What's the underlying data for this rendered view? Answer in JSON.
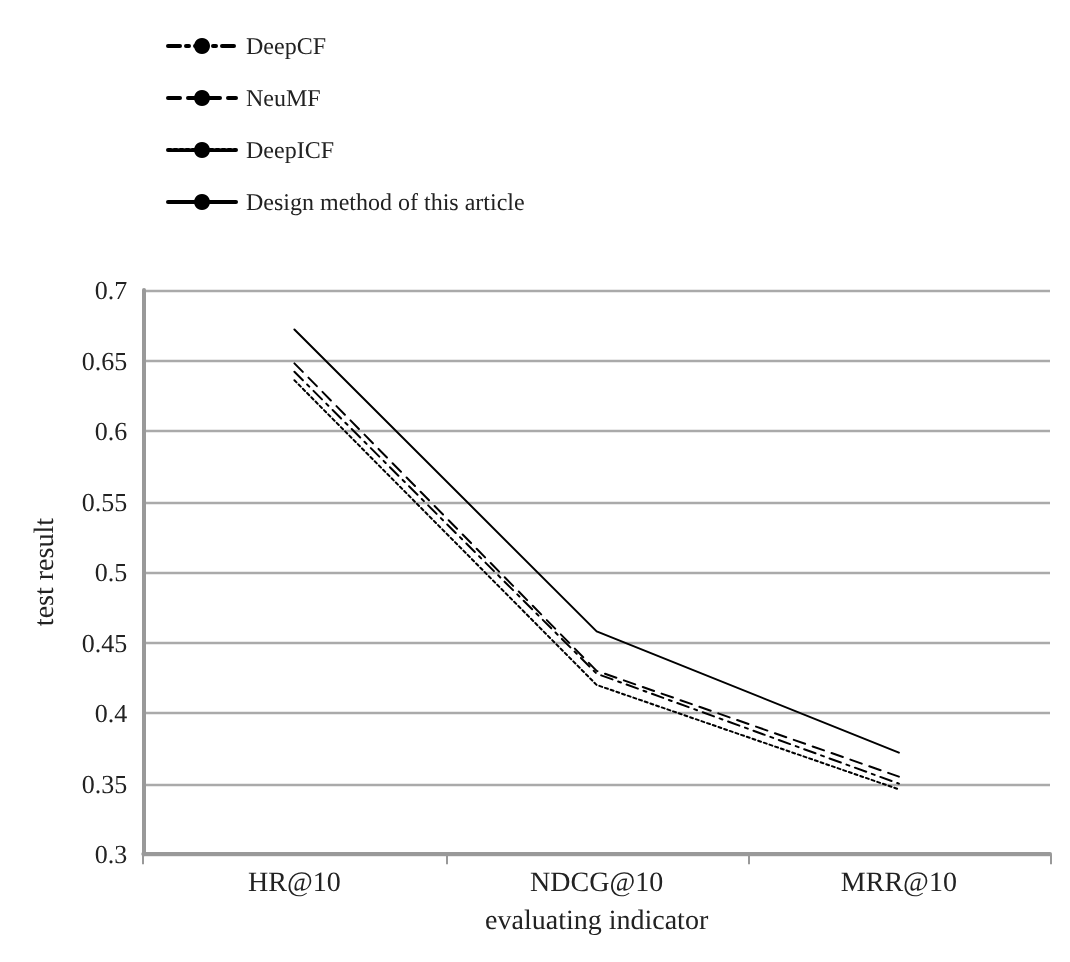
{
  "chart_data": {
    "type": "line",
    "xlabel": "evaluating indicator",
    "ylabel": "test result",
    "categories": [
      "HR@10",
      "NDCG@10",
      "MRR@10"
    ],
    "series": [
      {
        "name": "DeepCF",
        "color": "#000000",
        "line_style": "dashdot",
        "values": [
          0.642,
          0.428,
          0.35
        ]
      },
      {
        "name": "NeuMF",
        "color": "#000000",
        "line_style": "dashed",
        "values": [
          0.648,
          0.43,
          0.355
        ]
      },
      {
        "name": "DeepICF",
        "color": "#000000",
        "line_style": "dotted",
        "values": [
          0.636,
          0.42,
          0.346
        ]
      },
      {
        "name": "Design method of this article",
        "color": "#000000",
        "line_style": "solid",
        "values": [
          0.672,
          0.458,
          0.372
        ]
      }
    ],
    "ylim": [
      0.3,
      0.7
    ],
    "yticks": [
      0.3,
      0.35,
      0.4,
      0.45,
      0.5,
      0.55,
      0.6,
      0.65,
      0.7
    ],
    "grid": "y",
    "legend": "top left",
    "marker": "none"
  }
}
